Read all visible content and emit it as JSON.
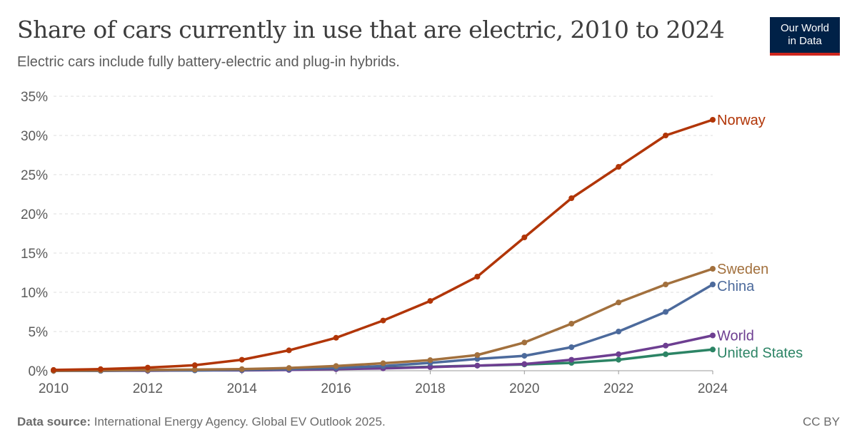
{
  "header": {
    "title": "Share of cars currently in use that are electric, 2010 to 2024",
    "subtitle": "Electric cars include fully battery-electric and plug-in hybrids."
  },
  "logo": {
    "line1": "Our World",
    "line2": "in Data"
  },
  "footer": {
    "source_label": "Data source:",
    "source_text": "International Energy Agency. Global EV Outlook 2025.",
    "license": "CC BY"
  },
  "chart_data": {
    "type": "line",
    "x": [
      2010,
      2011,
      2012,
      2013,
      2014,
      2015,
      2016,
      2017,
      2018,
      2019,
      2020,
      2021,
      2022,
      2023,
      2024
    ],
    "xlim": [
      2010,
      2024
    ],
    "ylim": [
      0,
      35
    ],
    "y_ticks": [
      0,
      5,
      10,
      15,
      20,
      25,
      30,
      35
    ],
    "y_tick_labels": [
      "0%",
      "5%",
      "10%",
      "15%",
      "20%",
      "25%",
      "30%",
      "35%"
    ],
    "x_ticks": [
      2010,
      2012,
      2014,
      2016,
      2018,
      2020,
      2022,
      2024
    ],
    "x_tick_labels": [
      "2010",
      "2012",
      "2014",
      "2016",
      "2018",
      "2020",
      "2022",
      "2024"
    ],
    "grid": "horizontal dashed",
    "legend": "inline labels at line ends",
    "series": [
      {
        "name": "Norway",
        "color": "#b13507",
        "values": [
          0.1,
          0.2,
          0.4,
          0.7,
          1.4,
          2.6,
          4.2,
          6.4,
          8.9,
          12.0,
          17.0,
          22.0,
          26.0,
          30.0,
          32.0
        ]
      },
      {
        "name": "Sweden",
        "color": "#a2703d",
        "values": [
          0.0,
          0.05,
          0.1,
          0.15,
          0.2,
          0.35,
          0.6,
          0.95,
          1.35,
          2.0,
          3.6,
          6.0,
          8.7,
          11.0,
          13.0
        ]
      },
      {
        "name": "China",
        "color": "#4c6a9c",
        "values": [
          0.0,
          0.0,
          0.05,
          0.05,
          0.1,
          0.2,
          0.35,
          0.6,
          1.0,
          1.5,
          1.9,
          3.0,
          5.0,
          7.5,
          11.0
        ]
      },
      {
        "name": "World",
        "color": "#6d3e91",
        "values": [
          0.0,
          0.0,
          0.0,
          0.05,
          0.05,
          0.1,
          0.2,
          0.3,
          0.45,
          0.65,
          0.85,
          1.4,
          2.1,
          3.2,
          4.5
        ]
      },
      {
        "name": "United States",
        "color": "#2c8465",
        "values": [
          0.0,
          0.0,
          0.05,
          0.05,
          0.1,
          0.15,
          0.25,
          0.35,
          0.5,
          0.65,
          0.8,
          1.0,
          1.4,
          2.1,
          2.7
        ]
      }
    ]
  }
}
